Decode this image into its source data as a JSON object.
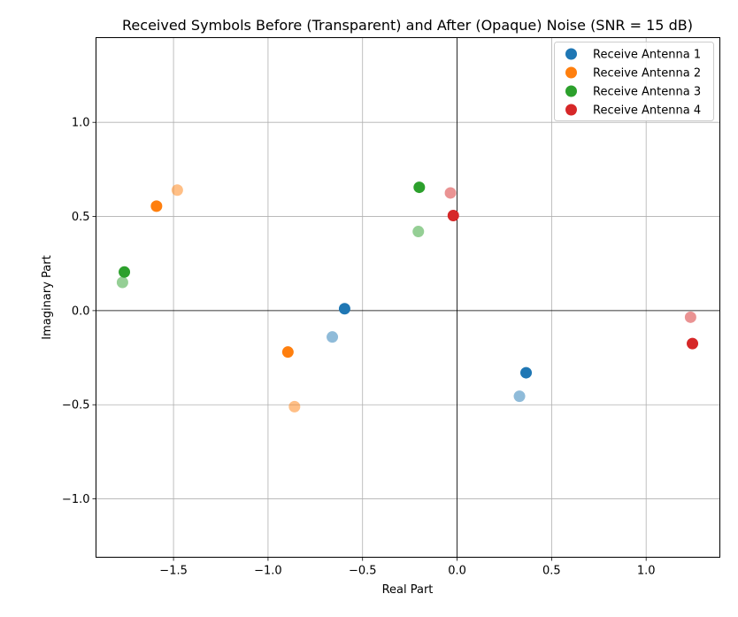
{
  "chart_data": {
    "type": "scatter",
    "title": "Received Symbols Before (Transparent) and After (Opaque) Noise (SNR = 15 dB)",
    "xlabel": "Real Part",
    "ylabel": "Imaginary Part",
    "xlim": [
      -1.91,
      1.39
    ],
    "ylim": [
      -1.31,
      1.45
    ],
    "xticks": [
      -1.5,
      -1.0,
      -0.5,
      0.0,
      0.5,
      1.0
    ],
    "xtick_labels": [
      "−1.5",
      "−1.0",
      "−0.5",
      "0.0",
      "0.5",
      "1.0"
    ],
    "yticks": [
      -1.0,
      -0.5,
      0.0,
      0.5,
      1.0
    ],
    "ytick_labels": [
      "−1.0",
      "−0.5",
      "0.0",
      "0.5",
      "1.0"
    ],
    "grid": true,
    "legend_position": "top-right",
    "series": [
      {
        "name": "Receive Antenna 1",
        "color": "#1f77b4",
        "before": [
          [
            -0.66,
            -0.14
          ],
          [
            0.33,
            -0.455
          ]
        ],
        "after": [
          [
            -0.595,
            0.01
          ],
          [
            0.365,
            -0.33
          ]
        ]
      },
      {
        "name": "Receive Antenna 2",
        "color": "#ff7f0e",
        "before": [
          [
            -1.48,
            0.64
          ],
          [
            -0.86,
            -0.51
          ]
        ],
        "after": [
          [
            -1.59,
            0.555
          ],
          [
            -0.895,
            -0.22
          ]
        ]
      },
      {
        "name": "Receive Antenna 3",
        "color": "#2ca02c",
        "before": [
          [
            -1.77,
            0.15
          ],
          [
            -0.205,
            0.42
          ]
        ],
        "after": [
          [
            -1.76,
            0.205
          ],
          [
            -0.2,
            0.655
          ]
        ]
      },
      {
        "name": "Receive Antenna 4",
        "color": "#d62728",
        "before": [
          [
            -0.035,
            0.625
          ],
          [
            1.235,
            -0.035
          ]
        ],
        "after": [
          [
            -0.02,
            0.505
          ],
          [
            1.245,
            -0.175
          ]
        ]
      }
    ]
  }
}
